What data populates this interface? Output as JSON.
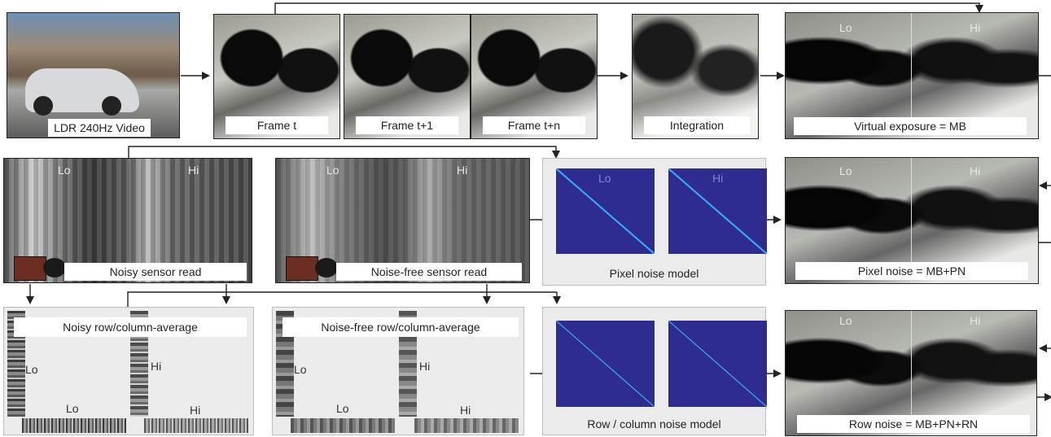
{
  "row1": {
    "input_label": "LDR 240Hz Video",
    "frames": [
      "Frame t",
      "Frame t+1",
      "Frame t+n"
    ],
    "integration_label": "Integration",
    "virtual_label": "Virtual exposure = MB"
  },
  "row2": {
    "noisy_label": "Noisy sensor read",
    "noisefree_label": "Noise-free sensor read",
    "pixel_model_label": "Pixel noise model",
    "pixel_noise_label": "Pixel noise = MB+PN"
  },
  "row3": {
    "noisy_avg_label": "Noisy row/column-average",
    "noisefree_avg_label": "Noise-free row/column-average",
    "row_model_label": "Row / column noise model",
    "row_noise_label": "Row noise = MB+PN+RN"
  },
  "lo": "Lo",
  "hi": "Hi",
  "colors": {
    "matrix_bg": "#2e2d8f",
    "diagonal": "#3fa9ff",
    "panel_bg": "#ebebeb"
  }
}
